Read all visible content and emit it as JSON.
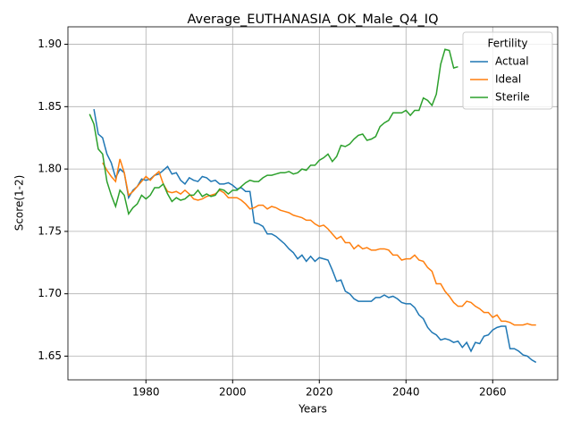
{
  "chart_data": {
    "type": "line",
    "title": "Average_EUTHANASIA_OK_Male_Q4_IQ",
    "x_label": "Years",
    "y_label": "Score(1-2)",
    "legend_title": "Fertility",
    "legend_position": "upper right",
    "grid": true,
    "x": [
      1967,
      1968,
      1969,
      1970,
      1971,
      1972,
      1973,
      1974,
      1975,
      1976,
      1977,
      1978,
      1979,
      1980,
      1981,
      1982,
      1983,
      1984,
      1985,
      1986,
      1987,
      1988,
      1989,
      1990,
      1991,
      1992,
      1993,
      1994,
      1995,
      1996,
      1997,
      1998,
      1999,
      2000,
      2001,
      2002,
      2003,
      2004,
      2005,
      2006,
      2007,
      2008,
      2009,
      2010,
      2011,
      2012,
      2013,
      2014,
      2015,
      2016,
      2017,
      2018,
      2019,
      2020,
      2021,
      2022,
      2023,
      2024,
      2025,
      2026,
      2027,
      2028,
      2029,
      2030,
      2031,
      2032,
      2033,
      2034,
      2035,
      2036,
      2037,
      2038,
      2039,
      2040,
      2041,
      2042,
      2043,
      2044,
      2045,
      2046,
      2047,
      2048,
      2049,
      2050,
      2051,
      2052,
      2053,
      2054,
      2055,
      2056,
      2057,
      2058,
      2059,
      2060,
      2061,
      2062,
      2063,
      2064,
      2065,
      2066,
      2067,
      2068,
      2069,
      2070
    ],
    "series": [
      {
        "name": "Actual",
        "color": "#1f77b4",
        "values": [
          null,
          1.848,
          1.828,
          1.825,
          1.812,
          1.805,
          1.793,
          1.8,
          1.797,
          1.777,
          1.783,
          1.786,
          1.792,
          1.791,
          1.792,
          1.795,
          1.796,
          1.799,
          1.802,
          1.796,
          1.797,
          1.791,
          1.788,
          1.793,
          1.791,
          1.79,
          1.794,
          1.793,
          1.79,
          1.791,
          1.788,
          1.788,
          1.789,
          1.787,
          1.784,
          1.785,
          1.782,
          1.782,
          1.757,
          1.756,
          1.754,
          1.748,
          1.748,
          1.746,
          1.743,
          1.74,
          1.736,
          1.733,
          1.728,
          1.731,
          1.726,
          1.73,
          1.726,
          1.729,
          1.728,
          1.727,
          1.719,
          1.71,
          1.711,
          1.702,
          1.7,
          1.696,
          1.694,
          1.694,
          1.694,
          1.694,
          1.697,
          1.697,
          1.699,
          1.697,
          1.698,
          1.696,
          1.693,
          1.692,
          1.692,
          1.689,
          1.683,
          1.68,
          1.673,
          1.669,
          1.667,
          1.663,
          1.664,
          1.663,
          1.661,
          1.662,
          1.657,
          1.661,
          1.654,
          1.661,
          1.66,
          1.666,
          1.667,
          1.671,
          1.673,
          1.674,
          1.674,
          1.656,
          1.656,
          1.654,
          1.651,
          1.65,
          1.647,
          1.645
        ]
      },
      {
        "name": "Ideal",
        "color": "#ff7f0e",
        "values": [
          null,
          null,
          null,
          1.805,
          1.799,
          1.794,
          1.79,
          1.808,
          1.797,
          1.779,
          1.782,
          1.786,
          1.79,
          1.794,
          1.791,
          1.795,
          1.798,
          1.788,
          1.782,
          1.781,
          1.782,
          1.78,
          1.783,
          1.78,
          1.776,
          1.775,
          1.776,
          1.778,
          1.779,
          1.78,
          1.783,
          1.781,
          1.777,
          1.777,
          1.777,
          1.775,
          1.772,
          1.768,
          1.769,
          1.771,
          1.771,
          1.768,
          1.77,
          1.769,
          1.767,
          1.766,
          1.765,
          1.763,
          1.762,
          1.761,
          1.759,
          1.759,
          1.756,
          1.754,
          1.755,
          1.752,
          1.748,
          1.744,
          1.746,
          1.741,
          1.741,
          1.736,
          1.739,
          1.736,
          1.737,
          1.735,
          1.735,
          1.736,
          1.736,
          1.735,
          1.731,
          1.731,
          1.727,
          1.728,
          1.728,
          1.731,
          1.727,
          1.726,
          1.721,
          1.718,
          1.708,
          1.708,
          1.702,
          1.698,
          1.693,
          1.69,
          1.69,
          1.694,
          1.693,
          1.69,
          1.688,
          1.685,
          1.685,
          1.681,
          1.683,
          1.678,
          1.678,
          1.677,
          1.675,
          1.675,
          1.675,
          1.676,
          1.675,
          1.675
        ]
      },
      {
        "name": "Sterile",
        "color": "#2ca02c",
        "values": [
          1.844,
          1.836,
          1.816,
          1.812,
          1.79,
          1.779,
          1.77,
          1.783,
          1.779,
          1.764,
          1.769,
          1.772,
          1.779,
          1.776,
          1.779,
          1.785,
          1.785,
          1.788,
          1.78,
          1.774,
          1.777,
          1.775,
          1.776,
          1.779,
          1.779,
          1.783,
          1.778,
          1.78,
          1.778,
          1.779,
          1.784,
          1.783,
          1.78,
          1.783,
          1.783,
          1.786,
          1.789,
          1.791,
          1.79,
          1.79,
          1.793,
          1.795,
          1.795,
          1.796,
          1.797,
          1.797,
          1.798,
          1.796,
          1.797,
          1.8,
          1.799,
          1.803,
          1.803,
          1.807,
          1.809,
          1.812,
          1.806,
          1.81,
          1.819,
          1.818,
          1.82,
          1.824,
          1.827,
          1.828,
          1.823,
          1.824,
          1.826,
          1.834,
          1.837,
          1.839,
          1.845,
          1.845,
          1.845,
          1.847,
          1.843,
          1.847,
          1.847,
          1.857,
          1.855,
          1.851,
          1.86,
          1.884,
          1.896,
          1.895,
          1.881,
          1.882,
          null,
          null,
          null,
          null,
          null,
          null,
          null,
          null,
          null,
          null,
          null,
          null,
          null,
          null,
          null,
          null,
          null,
          null
        ]
      }
    ],
    "xlim": [
      1962,
      2075
    ],
    "xticks": [
      1980,
      2000,
      2020,
      2040,
      2060
    ],
    "ylim": [
      1.631,
      1.914
    ],
    "yticks": [
      1.65,
      {
        "value": 1.7,
        "label": "1.70"
      },
      1.75,
      {
        "value": 1.8,
        "label": "1.80"
      },
      1.85,
      {
        "value": 1.9,
        "label": "1.90"
      }
    ]
  }
}
